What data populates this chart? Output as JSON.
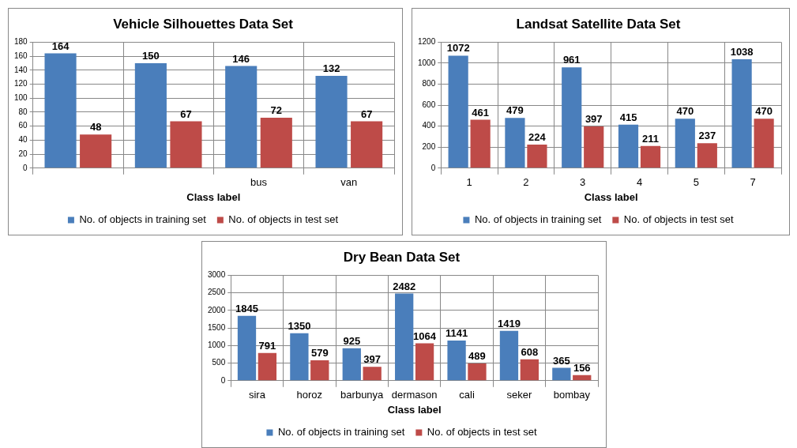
{
  "chart_data": [
    {
      "type": "bar",
      "title": "Vehicle Silhouettes Data Set",
      "xlabel": "Class label",
      "categories": [
        null,
        null,
        "bus",
        "van"
      ],
      "series": [
        {
          "name": "No. of objects in training set",
          "color": "#4a7ebb",
          "values": [
            164,
            150,
            146,
            132
          ]
        },
        {
          "name": "No. of objects in test set",
          "color": "#be4b48",
          "values": [
            48,
            67,
            72,
            67
          ]
        }
      ],
      "ylim": [
        0,
        180
      ],
      "yticks": [
        0,
        20,
        40,
        60,
        80,
        100,
        120,
        140,
        160,
        180
      ],
      "grid": true,
      "legend": "bottom",
      "data_labels": true
    },
    {
      "type": "bar",
      "title": "Landsat Satellite Data Set",
      "xlabel": "Class label",
      "categories": [
        "1",
        "2",
        "3",
        "4",
        "5",
        "7"
      ],
      "series": [
        {
          "name": "No. of objects in training set",
          "color": "#4a7ebb",
          "values": [
            1072,
            479,
            961,
            415,
            470,
            1038
          ]
        },
        {
          "name": "No. of objects in test set",
          "color": "#be4b48",
          "values": [
            461,
            224,
            397,
            211,
            237,
            470
          ]
        }
      ],
      "ylim": [
        0,
        1200
      ],
      "yticks": [
        0,
        200,
        400,
        600,
        800,
        1000,
        1200
      ],
      "grid": true,
      "legend": "bottom",
      "data_labels": true
    },
    {
      "type": "bar",
      "title": "Dry Bean Data Set",
      "xlabel": "Class label",
      "categories": [
        "sira",
        "horoz",
        "barbunya",
        "dermason",
        "cali",
        "seker",
        "bombay"
      ],
      "series": [
        {
          "name": "No. of objects in training set",
          "color": "#4a7ebb",
          "values": [
            1845,
            1350,
            925,
            2482,
            1141,
            1419,
            365
          ]
        },
        {
          "name": "No. of objects in test set",
          "color": "#be4b48",
          "values": [
            791,
            579,
            397,
            1064,
            489,
            608,
            156
          ]
        }
      ],
      "ylim": [
        0,
        3000
      ],
      "yticks": [
        0,
        500,
        1000,
        1500,
        2000,
        2500,
        3000
      ],
      "grid": true,
      "legend": "bottom",
      "data_labels": true
    }
  ]
}
